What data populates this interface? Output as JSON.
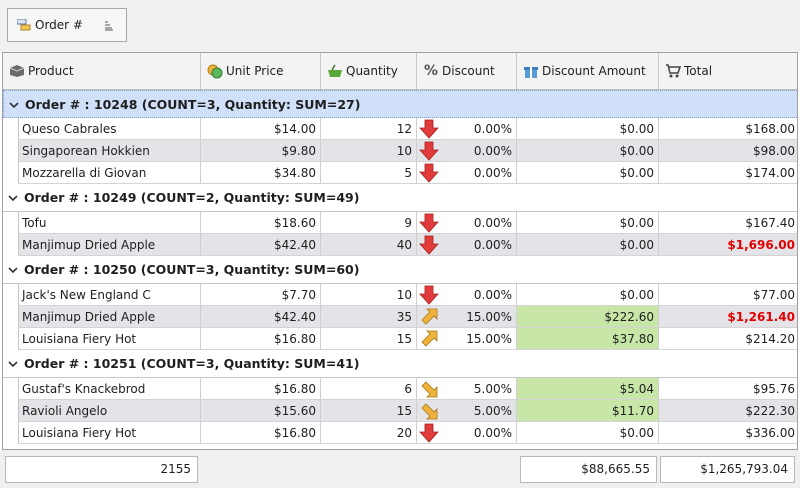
{
  "group_panel": {
    "tag_label": "Order #"
  },
  "columns": [
    {
      "label": "Product",
      "icon": "box-icon"
    },
    {
      "label": "Unit Price",
      "icon": "coins-icon"
    },
    {
      "label": "Quantity",
      "icon": "basket-icon"
    },
    {
      "label": "Discount",
      "icon": "percent-icon"
    },
    {
      "label": "Discount Amount",
      "icon": "gift-icon"
    },
    {
      "label": "Total",
      "icon": "cart-icon"
    }
  ],
  "groups": [
    {
      "header": "Order # : 10248 (COUNT=3, Quantity: SUM=27)",
      "rows": [
        {
          "product": "Queso Cabrales",
          "unit_price": "$14.00",
          "quantity": "12",
          "trend": "down",
          "discount": "0.00%",
          "discount_amount": "$0.00",
          "total": "$168.00",
          "highlight_discount": false,
          "highlight_total": false
        },
        {
          "product": "Singaporean Hokkien",
          "unit_price": "$9.80",
          "quantity": "10",
          "trend": "down",
          "discount": "0.00%",
          "discount_amount": "$0.00",
          "total": "$98.00",
          "highlight_discount": false,
          "highlight_total": false
        },
        {
          "product": "Mozzarella di Giovan",
          "unit_price": "$34.80",
          "quantity": "5",
          "trend": "down",
          "discount": "0.00%",
          "discount_amount": "$0.00",
          "total": "$174.00",
          "highlight_discount": false,
          "highlight_total": false
        }
      ]
    },
    {
      "header": "Order # : 10249 (COUNT=2, Quantity: SUM=49)",
      "rows": [
        {
          "product": "Tofu",
          "unit_price": "$18.60",
          "quantity": "9",
          "trend": "down",
          "discount": "0.00%",
          "discount_amount": "$0.00",
          "total": "$167.40",
          "highlight_discount": false,
          "highlight_total": false
        },
        {
          "product": "Manjimup Dried Apple",
          "unit_price": "$42.40",
          "quantity": "40",
          "trend": "down",
          "discount": "0.00%",
          "discount_amount": "$0.00",
          "total": "$1,696.00",
          "highlight_discount": false,
          "highlight_total": true
        }
      ]
    },
    {
      "header": "Order # : 10250 (COUNT=3, Quantity: SUM=60)",
      "rows": [
        {
          "product": "Jack's New England C",
          "unit_price": "$7.70",
          "quantity": "10",
          "trend": "down",
          "discount": "0.00%",
          "discount_amount": "$0.00",
          "total": "$77.00",
          "highlight_discount": false,
          "highlight_total": false
        },
        {
          "product": "Manjimup Dried Apple",
          "unit_price": "$42.40",
          "quantity": "35",
          "trend": "up-left",
          "discount": "15.00%",
          "discount_amount": "$222.60",
          "total": "$1,261.40",
          "highlight_discount": true,
          "highlight_total": true
        },
        {
          "product": "Louisiana Fiery Hot",
          "unit_price": "$16.80",
          "quantity": "15",
          "trend": "up-left",
          "discount": "15.00%",
          "discount_amount": "$37.80",
          "total": "$214.20",
          "highlight_discount": true,
          "highlight_total": false
        }
      ]
    },
    {
      "header": "Order # : 10251 (COUNT=3, Quantity: SUM=41)",
      "rows": [
        {
          "product": "Gustaf's Knackebrod",
          "unit_price": "$16.80",
          "quantity": "6",
          "trend": "down-right",
          "discount": "5.00%",
          "discount_amount": "$5.04",
          "total": "$95.76",
          "highlight_discount": true,
          "highlight_total": false
        },
        {
          "product": "Ravioli Angelo",
          "unit_price": "$15.60",
          "quantity": "15",
          "trend": "down-right",
          "discount": "5.00%",
          "discount_amount": "$11.70",
          "total": "$222.30",
          "highlight_discount": true,
          "highlight_total": false
        },
        {
          "product": "Louisiana Fiery Hot",
          "unit_price": "$16.80",
          "quantity": "20",
          "trend": "down",
          "discount": "0.00%",
          "discount_amount": "$0.00",
          "total": "$336.00",
          "highlight_discount": false,
          "highlight_total": false
        }
      ]
    }
  ],
  "summary": {
    "quantity": "2155",
    "discount_amount": "$88,665.55",
    "total": "$1,265,793.04"
  },
  "colors": {
    "group_selected": "#cfe0f8",
    "alt_row": "#e3e3e8",
    "discount_highlight": "#c7e6a8",
    "total_highlight": "#e00000",
    "arrow_down": "#e23b3b",
    "arrow_diag": "#f0b43c"
  }
}
